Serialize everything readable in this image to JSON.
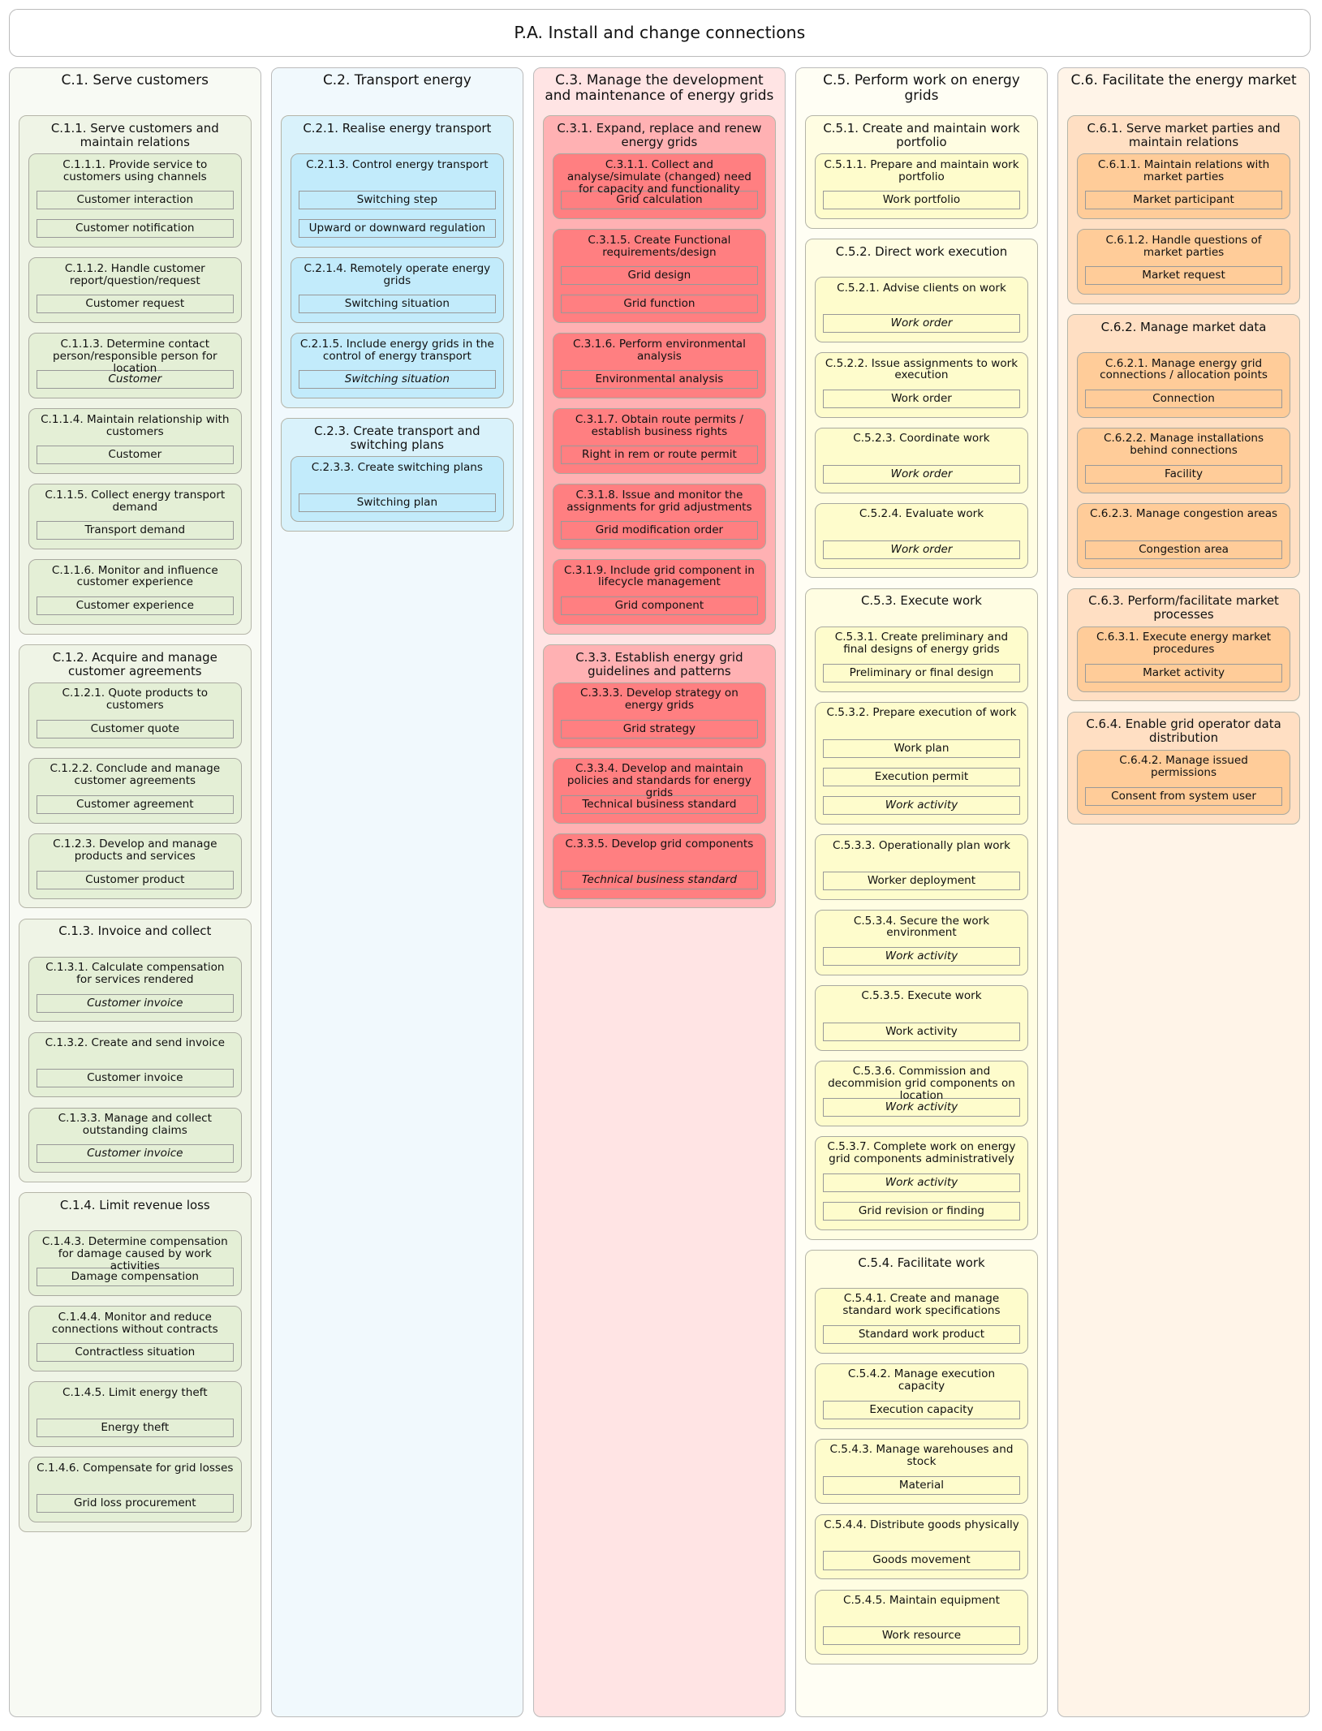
{
  "title": "P.A. Install and change connections",
  "colors": {
    "c1": {
      "column": "#f8faf4",
      "group": "#eff4e6",
      "process": "#e4efd6"
    },
    "c2": {
      "column": "#f1f9fd",
      "group": "#d9f2fb",
      "process": "#c2ebfb"
    },
    "c3": {
      "column": "#ffe4e4",
      "group": "#ffb1b3",
      "process": "#ff7f81"
    },
    "c5": {
      "column": "#fffef4",
      "group": "#fffde2",
      "process": "#fefccc"
    },
    "c6": {
      "column": "#fff4e8",
      "group": "#ffdfc3",
      "process": "#ffcc99"
    }
  },
  "columns": [
    {
      "key": "c1",
      "title": "C.1. Serve customers",
      "groups": [
        {
          "title": "C.1.1. Serve customers and maintain relations",
          "processes": [
            {
              "title": "C.1.1.1. Provide service to customers using channels",
              "items": [
                {
                  "label": "Customer interaction"
                },
                {
                  "label": "Customer notification"
                }
              ]
            },
            {
              "title": "C.1.1.2. Handle customer report/question/request",
              "items": [
                {
                  "label": "Customer request"
                }
              ]
            },
            {
              "title": "C.1.1.3. Determine contact person/responsible person for location",
              "items": [
                {
                  "label": "Customer",
                  "italic": true
                }
              ]
            },
            {
              "title": "C.1.1.4. Maintain relationship with customers",
              "items": [
                {
                  "label": "Customer"
                }
              ]
            },
            {
              "title": "C.1.1.5. Collect energy transport demand",
              "items": [
                {
                  "label": "Transport demand"
                }
              ]
            },
            {
              "title": "C.1.1.6. Monitor and influence customer experience",
              "items": [
                {
                  "label": "Customer experience"
                }
              ]
            }
          ]
        },
        {
          "title": "C.1.2. Acquire and manage customer agreements",
          "processes": [
            {
              "title": "C.1.2.1. Quote products to customers",
              "items": [
                {
                  "label": "Customer quote"
                }
              ]
            },
            {
              "title": "C.1.2.2. Conclude and manage customer agreements",
              "items": [
                {
                  "label": "Customer agreement"
                }
              ]
            },
            {
              "title": "C.1.2.3. Develop and manage products and services",
              "items": [
                {
                  "label": "Customer product"
                }
              ]
            }
          ]
        },
        {
          "title": "C.1.3. Invoice and collect",
          "processes": [
            {
              "title": "C.1.3.1. Calculate compensation for services rendered",
              "items": [
                {
                  "label": "Customer invoice",
                  "italic": true
                }
              ]
            },
            {
              "title": "C.1.3.2. Create and send invoice",
              "items": [
                {
                  "label": "Customer invoice"
                }
              ]
            },
            {
              "title": "C.1.3.3. Manage and collect outstanding claims",
              "items": [
                {
                  "label": "Customer invoice",
                  "italic": true
                }
              ]
            }
          ]
        },
        {
          "title": "C.1.4. Limit revenue loss",
          "processes": [
            {
              "title": "C.1.4.3. Determine compensation for damage caused by work activities",
              "items": [
                {
                  "label": "Damage compensation"
                }
              ]
            },
            {
              "title": "C.1.4.4. Monitor and reduce connections without contracts",
              "items": [
                {
                  "label": "Contractless situation"
                }
              ]
            },
            {
              "title": "C.1.4.5. Limit energy theft",
              "items": [
                {
                  "label": "Energy theft"
                }
              ]
            },
            {
              "title": "C.1.4.6. Compensate for grid losses",
              "items": [
                {
                  "label": "Grid loss procurement"
                }
              ]
            }
          ]
        }
      ]
    },
    {
      "key": "c2",
      "title": "C.2. Transport energy",
      "groups": [
        {
          "title": "C.2.1. Realise energy transport",
          "processes": [
            {
              "title": "C.2.1.3. Control energy transport",
              "items": [
                {
                  "label": "Switching step"
                },
                {
                  "label": "Upward or downward regulation"
                }
              ]
            },
            {
              "title": "C.2.1.4. Remotely operate energy grids",
              "items": [
                {
                  "label": "Switching situation"
                }
              ]
            },
            {
              "title": "C.2.1.5. Include energy grids in the control of energy transport",
              "items": [
                {
                  "label": "Switching situation",
                  "italic": true
                }
              ]
            }
          ]
        },
        {
          "title": "C.2.3. Create transport and switching plans",
          "processes": [
            {
              "title": "C.2.3.3. Create switching plans",
              "items": [
                {
                  "label": "Switching plan"
                }
              ]
            }
          ]
        }
      ]
    },
    {
      "key": "c3",
      "title": "C.3. Manage the development and maintenance of energy grids",
      "groups": [
        {
          "title": "C.3.1. Expand, replace and renew energy grids",
          "processes": [
            {
              "title": "C.3.1.1. Collect and analyse/simulate (changed) need for capacity and functionality",
              "items": [
                {
                  "label": "Grid calculation"
                }
              ]
            },
            {
              "title": "C.3.1.5. Create Functional requirements/design",
              "items": [
                {
                  "label": "Grid design"
                },
                {
                  "label": "Grid function"
                }
              ]
            },
            {
              "title": "C.3.1.6. Perform environmental analysis",
              "items": [
                {
                  "label": "Environmental analysis"
                }
              ]
            },
            {
              "title": "C.3.1.7. Obtain route permits / establish business rights",
              "items": [
                {
                  "label": "Right in rem or route permit"
                }
              ]
            },
            {
              "title": "C.3.1.8. Issue and monitor the assignments for grid adjustments",
              "items": [
                {
                  "label": "Grid modification order"
                }
              ]
            },
            {
              "title": "C.3.1.9. Include grid component in lifecycle management",
              "items": [
                {
                  "label": "Grid component"
                }
              ]
            }
          ]
        },
        {
          "title": "C.3.3. Establish energy grid guidelines and patterns",
          "processes": [
            {
              "title": "C.3.3.3. Develop strategy on energy grids",
              "items": [
                {
                  "label": "Grid strategy"
                }
              ]
            },
            {
              "title": "C.3.3.4. Develop and maintain policies and standards for energy grids",
              "items": [
                {
                  "label": "Technical business standard"
                }
              ]
            },
            {
              "title": "C.3.3.5. Develop grid components",
              "items": [
                {
                  "label": "Technical business standard",
                  "italic": true
                }
              ]
            }
          ]
        }
      ]
    },
    {
      "key": "c5",
      "title": "C.5. Perform work on energy grids",
      "groups": [
        {
          "title": "C.5.1. Create and maintain work portfolio",
          "processes": [
            {
              "title": "C.5.1.1. Prepare and maintain work portfolio",
              "items": [
                {
                  "label": "Work portfolio"
                }
              ]
            }
          ]
        },
        {
          "title": "C.5.2. Direct work execution",
          "processes": [
            {
              "title": "C.5.2.1. Advise clients on work",
              "items": [
                {
                  "label": "Work order",
                  "italic": true
                }
              ]
            },
            {
              "title": "C.5.2.2. Issue assignments to work execution",
              "items": [
                {
                  "label": "Work order"
                }
              ]
            },
            {
              "title": "C.5.2.3. Coordinate work",
              "items": [
                {
                  "label": "Work order",
                  "italic": true
                }
              ]
            },
            {
              "title": "C.5.2.4. Evaluate work",
              "items": [
                {
                  "label": "Work order",
                  "italic": true
                }
              ]
            }
          ]
        },
        {
          "title": "C.5.3. Execute work",
          "processes": [
            {
              "title": "C.5.3.1. Create preliminary and final designs of energy grids",
              "items": [
                {
                  "label": "Preliminary or final design"
                }
              ]
            },
            {
              "title": "C.5.3.2. Prepare execution of work",
              "items": [
                {
                  "label": "Work plan"
                },
                {
                  "label": "Execution permit"
                },
                {
                  "label": "Work activity",
                  "italic": true
                }
              ]
            },
            {
              "title": "C.5.3.3. Operationally plan work",
              "items": [
                {
                  "label": "Worker deployment"
                }
              ]
            },
            {
              "title": "C.5.3.4. Secure the work environment",
              "items": [
                {
                  "label": "Work activity",
                  "italic": true
                }
              ]
            },
            {
              "title": "C.5.3.5. Execute work",
              "items": [
                {
                  "label": "Work activity"
                }
              ]
            },
            {
              "title": "C.5.3.6. Commission and decommision grid components on location",
              "items": [
                {
                  "label": "Work activity",
                  "italic": true
                }
              ]
            },
            {
              "title": "C.5.3.7. Complete work on energy grid components administratively",
              "items": [
                {
                  "label": "Work activity",
                  "italic": true
                },
                {
                  "label": "Grid revision or finding"
                }
              ]
            }
          ]
        },
        {
          "title": "C.5.4. Facilitate work",
          "processes": [
            {
              "title": "C.5.4.1. Create and manage standard work specifications",
              "items": [
                {
                  "label": "Standard work product"
                }
              ]
            },
            {
              "title": "C.5.4.2. Manage execution capacity",
              "items": [
                {
                  "label": "Execution capacity"
                }
              ]
            },
            {
              "title": "C.5.4.3. Manage warehouses and stock",
              "items": [
                {
                  "label": "Material"
                }
              ]
            },
            {
              "title": "C.5.4.4. Distribute goods physically",
              "items": [
                {
                  "label": "Goods movement"
                }
              ]
            },
            {
              "title": "C.5.4.5. Maintain equipment",
              "items": [
                {
                  "label": "Work resource"
                }
              ]
            }
          ]
        }
      ]
    },
    {
      "key": "c6",
      "title": "C.6. Facilitate the energy market",
      "groups": [
        {
          "title": "C.6.1. Serve market parties and maintain relations",
          "processes": [
            {
              "title": "C.6.1.1. Maintain relations with market parties",
              "items": [
                {
                  "label": "Market participant"
                }
              ]
            },
            {
              "title": "C.6.1.2. Handle questions of market parties",
              "items": [
                {
                  "label": "Market request"
                }
              ]
            }
          ]
        },
        {
          "title": "C.6.2. Manage market data",
          "processes": [
            {
              "title": "C.6.2.1. Manage energy grid connections / allocation points",
              "items": [
                {
                  "label": "Connection"
                }
              ]
            },
            {
              "title": "C.6.2.2. Manage installations behind connections",
              "items": [
                {
                  "label": "Facility"
                }
              ]
            },
            {
              "title": "C.6.2.3. Manage congestion areas",
              "items": [
                {
                  "label": "Congestion area"
                }
              ]
            }
          ]
        },
        {
          "title": "C.6.3. Perform/facilitate market processes",
          "processes": [
            {
              "title": "C.6.3.1. Execute energy market procedures",
              "items": [
                {
                  "label": "Market activity"
                }
              ]
            }
          ]
        },
        {
          "title": "C.6.4. Enable grid operator data distribution",
          "processes": [
            {
              "title": "C.6.4.2. Manage issued permissions",
              "items": [
                {
                  "label": "Consent from system user"
                }
              ]
            }
          ]
        }
      ]
    }
  ]
}
